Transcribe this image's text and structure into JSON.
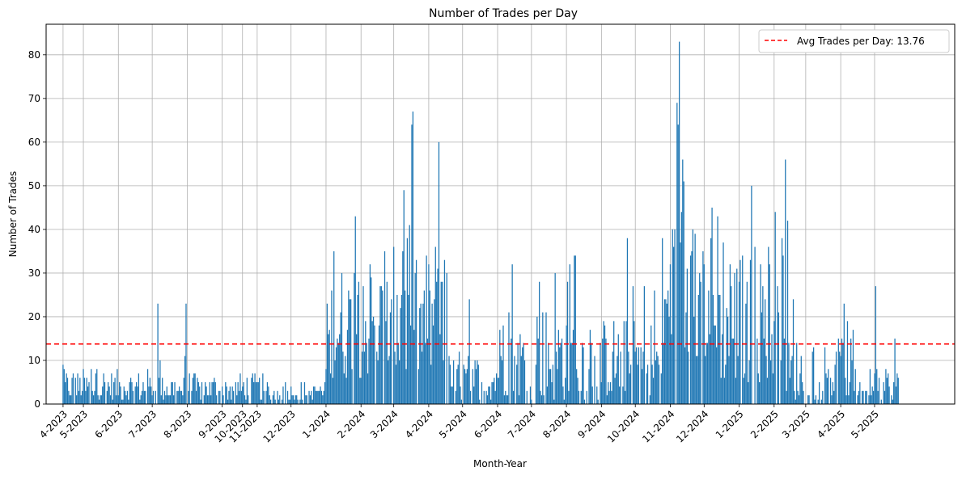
{
  "chart_data": {
    "type": "bar",
    "title": "Number of Trades per Day",
    "xlabel": "Month-Year",
    "ylabel": "Number of Trades",
    "ylim": [
      0,
      87
    ],
    "yticks": [
      0,
      10,
      20,
      30,
      40,
      50,
      60,
      70,
      80
    ],
    "xlim": [
      -15,
      790
    ],
    "grid": true,
    "bar_color": "#1f77b4",
    "avg_line": {
      "value": 13.76,
      "label": "Avg Trades per Day: 13.76",
      "color": "#ff0000"
    },
    "legend_loc": "upper right",
    "month_ticks": [
      {
        "label": "4-2023",
        "day": 0
      },
      {
        "label": "5-2023",
        "day": 18
      },
      {
        "label": "6-2023",
        "day": 49
      },
      {
        "label": "7-2023",
        "day": 79
      },
      {
        "label": "8-2023",
        "day": 110
      },
      {
        "label": "9-2023",
        "day": 141
      },
      {
        "label": "10-2023",
        "day": 159
      },
      {
        "label": "11-2023",
        "day": 172
      },
      {
        "label": "12-2023",
        "day": 202
      },
      {
        "label": "1-2024",
        "day": 233
      },
      {
        "label": "2-2024",
        "day": 264
      },
      {
        "label": "3-2024",
        "day": 293
      },
      {
        "label": "4-2024",
        "day": 324
      },
      {
        "label": "5-2024",
        "day": 354
      },
      {
        "label": "6-2024",
        "day": 385
      },
      {
        "label": "7-2024",
        "day": 415
      },
      {
        "label": "8-2024",
        "day": 446
      },
      {
        "label": "9-2024",
        "day": 477
      },
      {
        "label": "10-2024",
        "day": 507
      },
      {
        "label": "11-2024",
        "day": 538
      },
      {
        "label": "12-2024",
        "day": 568
      },
      {
        "label": "1-2025",
        "day": 599
      },
      {
        "label": "2-2025",
        "day": 630
      },
      {
        "label": "3-2025",
        "day": 658
      },
      {
        "label": "4-2025",
        "day": 689
      },
      {
        "label": "5-2025",
        "day": 719
      }
    ],
    "x_start_date": "2023-04-01",
    "day_count": 760,
    "segments": [
      {
        "from": 0,
        "to": 85,
        "min": 1,
        "max": 8
      },
      {
        "from": 86,
        "to": 180,
        "min": 1,
        "max": 7
      },
      {
        "from": 181,
        "to": 232,
        "min": 1,
        "max": 5
      },
      {
        "from": 233,
        "to": 292,
        "min": 6,
        "max": 32
      },
      {
        "from": 293,
        "to": 340,
        "min": 6,
        "max": 36
      },
      {
        "from": 341,
        "to": 384,
        "min": 1,
        "max": 12
      },
      {
        "from": 385,
        "to": 414,
        "min": 2,
        "max": 20
      },
      {
        "from": 415,
        "to": 476,
        "min": 1,
        "max": 24
      },
      {
        "from": 477,
        "to": 506,
        "min": 2,
        "max": 20
      },
      {
        "from": 507,
        "to": 530,
        "min": 2,
        "max": 20
      },
      {
        "from": 531,
        "to": 575,
        "min": 10,
        "max": 40
      },
      {
        "from": 576,
        "to": 640,
        "min": 5,
        "max": 35
      },
      {
        "from": 641,
        "to": 700,
        "min": 1,
        "max": 15
      },
      {
        "from": 701,
        "to": 740,
        "min": 1,
        "max": 8
      }
    ],
    "peaks": [
      {
        "day": 0,
        "value": 9
      },
      {
        "day": 25,
        "value": 8
      },
      {
        "day": 30,
        "value": 8
      },
      {
        "day": 84,
        "value": 23
      },
      {
        "day": 86,
        "value": 10
      },
      {
        "day": 108,
        "value": 11
      },
      {
        "day": 109,
        "value": 23
      },
      {
        "day": 236,
        "value": 17
      },
      {
        "day": 240,
        "value": 35
      },
      {
        "day": 255,
        "value": 24
      },
      {
        "day": 258,
        "value": 30
      },
      {
        "day": 259,
        "value": 43
      },
      {
        "day": 262,
        "value": 28
      },
      {
        "day": 266,
        "value": 27
      },
      {
        "day": 272,
        "value": 32
      },
      {
        "day": 285,
        "value": 35
      },
      {
        "day": 296,
        "value": 25
      },
      {
        "day": 300,
        "value": 25
      },
      {
        "day": 301,
        "value": 35
      },
      {
        "day": 302,
        "value": 49
      },
      {
        "day": 305,
        "value": 38
      },
      {
        "day": 307,
        "value": 41
      },
      {
        "day": 309,
        "value": 64
      },
      {
        "day": 310,
        "value": 67
      },
      {
        "day": 312,
        "value": 30
      },
      {
        "day": 316,
        "value": 22
      },
      {
        "day": 330,
        "value": 36
      },
      {
        "day": 332,
        "value": 31
      },
      {
        "day": 333,
        "value": 60
      },
      {
        "day": 335,
        "value": 28
      },
      {
        "day": 336,
        "value": 28
      },
      {
        "day": 360,
        "value": 24
      },
      {
        "day": 390,
        "value": 18
      },
      {
        "day": 395,
        "value": 21
      },
      {
        "day": 398,
        "value": 32
      },
      {
        "day": 422,
        "value": 28
      },
      {
        "day": 436,
        "value": 30
      },
      {
        "day": 447,
        "value": 28
      },
      {
        "day": 449,
        "value": 32
      },
      {
        "day": 453,
        "value": 34
      },
      {
        "day": 454,
        "value": 34
      },
      {
        "day": 500,
        "value": 38
      },
      {
        "day": 505,
        "value": 27
      },
      {
        "day": 515,
        "value": 27
      },
      {
        "day": 524,
        "value": 26
      },
      {
        "day": 533,
        "value": 24
      },
      {
        "day": 540,
        "value": 40
      },
      {
        "day": 542,
        "value": 40
      },
      {
        "day": 544,
        "value": 69
      },
      {
        "day": 545,
        "value": 64
      },
      {
        "day": 546,
        "value": 83
      },
      {
        "day": 548,
        "value": 44
      },
      {
        "day": 549,
        "value": 56
      },
      {
        "day": 550,
        "value": 51
      },
      {
        "day": 553,
        "value": 31
      },
      {
        "day": 558,
        "value": 40
      },
      {
        "day": 560,
        "value": 39
      },
      {
        "day": 575,
        "value": 45
      },
      {
        "day": 580,
        "value": 43
      },
      {
        "day": 585,
        "value": 37
      },
      {
        "day": 591,
        "value": 32
      },
      {
        "day": 600,
        "value": 33
      },
      {
        "day": 605,
        "value": 23
      },
      {
        "day": 610,
        "value": 50
      },
      {
        "day": 613,
        "value": 36
      },
      {
        "day": 620,
        "value": 27
      },
      {
        "day": 625,
        "value": 36
      },
      {
        "day": 631,
        "value": 44
      },
      {
        "day": 637,
        "value": 38
      },
      {
        "day": 640,
        "value": 56
      },
      {
        "day": 642,
        "value": 42
      },
      {
        "day": 647,
        "value": 24
      },
      {
        "day": 690,
        "value": 15
      },
      {
        "day": 692,
        "value": 23
      },
      {
        "day": 695,
        "value": 19
      },
      {
        "day": 700,
        "value": 17
      },
      {
        "day": 720,
        "value": 27
      },
      {
        "day": 737,
        "value": 15
      }
    ]
  }
}
